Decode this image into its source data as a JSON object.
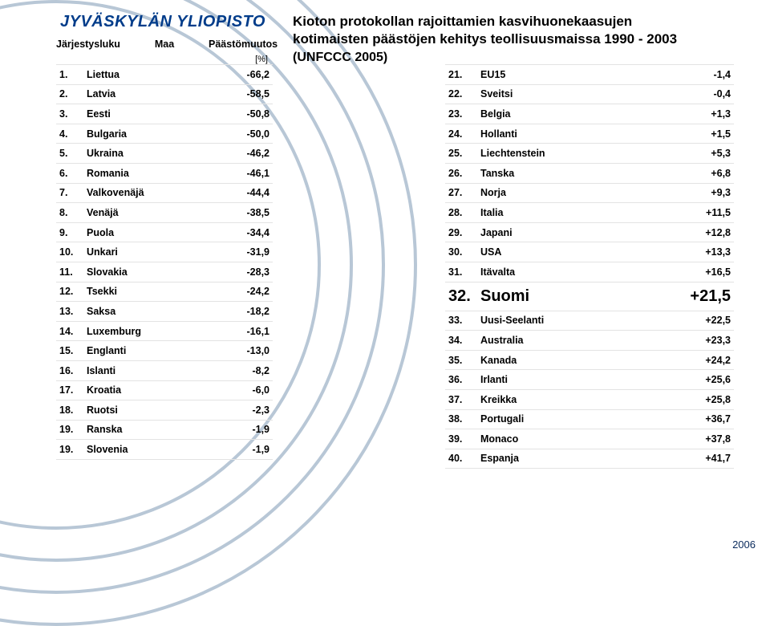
{
  "header": "JYVÄSKYLÄN YLIOPISTO",
  "left_table": {
    "head_rank": "Järjestysluku",
    "head_country": "Maa",
    "head_value": "Päästömuutos",
    "head_unit": "[%]",
    "rows": [
      {
        "rank": "1.",
        "country": "Liettua",
        "val": "-66,2"
      },
      {
        "rank": "2.",
        "country": "Latvia",
        "val": "-58,5"
      },
      {
        "rank": "3.",
        "country": "Eesti",
        "val": "-50,8"
      },
      {
        "rank": "4.",
        "country": "Bulgaria",
        "val": "-50,0"
      },
      {
        "rank": "5.",
        "country": "Ukraina",
        "val": "-46,2"
      },
      {
        "rank": "6.",
        "country": "Romania",
        "val": "-46,1"
      },
      {
        "rank": "7.",
        "country": "Valkovenäjä",
        "val": "-44,4"
      },
      {
        "rank": "8.",
        "country": "Venäjä",
        "val": "-38,5"
      },
      {
        "rank": "9.",
        "country": "Puola",
        "val": "-34,4"
      },
      {
        "rank": "10.",
        "country": "Unkari",
        "val": "-31,9"
      },
      {
        "rank": "11.",
        "country": "Slovakia",
        "val": "-28,3"
      },
      {
        "rank": "12.",
        "country": "Tsekki",
        "val": "-24,2"
      },
      {
        "rank": "13.",
        "country": "Saksa",
        "val": "-18,2"
      },
      {
        "rank": "14.",
        "country": "Luxemburg",
        "val": "-16,1"
      },
      {
        "rank": "15.",
        "country": "Englanti",
        "val": "-13,0"
      },
      {
        "rank": "16.",
        "country": "Islanti",
        "val": "-8,2"
      },
      {
        "rank": "17.",
        "country": "Kroatia",
        "val": "-6,0"
      },
      {
        "rank": "18.",
        "country": "Ruotsi",
        "val": "-2,3"
      },
      {
        "rank": "19.",
        "country": "Ranska",
        "val": "-1,9"
      },
      {
        "rank": "19.",
        "country": "Slovenia",
        "val": "-1,9"
      }
    ]
  },
  "title": {
    "line1": "Kioton protokollan rajoittamien kasvihuonekaasujen",
    "line2": "kotimaisten päästöjen kehitys teollisuusmaissa 1990 - 2003",
    "source": "(UNFCCC 2005)"
  },
  "right_table": {
    "rows": [
      {
        "rank": "21.",
        "country": "EU15",
        "val": "-1,4",
        "hl": false
      },
      {
        "rank": "22.",
        "country": "Sveitsi",
        "val": "-0,4",
        "hl": false
      },
      {
        "rank": "23.",
        "country": "Belgia",
        "val": "+1,3",
        "hl": false
      },
      {
        "rank": "24.",
        "country": "Hollanti",
        "val": "+1,5",
        "hl": false
      },
      {
        "rank": "25.",
        "country": "Liechtenstein",
        "val": "+5,3",
        "hl": false
      },
      {
        "rank": "26.",
        "country": "Tanska",
        "val": "+6,8",
        "hl": false
      },
      {
        "rank": "27.",
        "country": "Norja",
        "val": "+9,3",
        "hl": false
      },
      {
        "rank": "28.",
        "country": "Italia",
        "val": "+11,5",
        "hl": false
      },
      {
        "rank": "29.",
        "country": "Japani",
        "val": "+12,8",
        "hl": false
      },
      {
        "rank": "30.",
        "country": "USA",
        "val": "+13,3",
        "hl": false
      },
      {
        "rank": "31.",
        "country": "Itävalta",
        "val": "+16,5",
        "hl": false
      },
      {
        "rank": "32.",
        "country": "Suomi",
        "val": "+21,5",
        "hl": true
      },
      {
        "rank": "33.",
        "country": "Uusi-Seelanti",
        "val": "+22,5",
        "hl": false
      },
      {
        "rank": "34.",
        "country": "Australia",
        "val": "+23,3",
        "hl": false
      },
      {
        "rank": "35.",
        "country": "Kanada",
        "val": "+24,2",
        "hl": false
      },
      {
        "rank": "36.",
        "country": "Irlanti",
        "val": "+25,6",
        "hl": false
      },
      {
        "rank": "37.",
        "country": "Kreikka",
        "val": "+25,8",
        "hl": false
      },
      {
        "rank": "38.",
        "country": "Portugali",
        "val": "+36,7",
        "hl": false
      },
      {
        "rank": "39.",
        "country": "Monaco",
        "val": "+37,8",
        "hl": false
      },
      {
        "rank": "40.",
        "country": "Espanja",
        "val": "+41,7",
        "hl": false
      }
    ]
  },
  "year": "2006",
  "colors": {
    "header": "#003c8a",
    "lines": "#b8c7d6",
    "border": "#e3e3e3"
  }
}
